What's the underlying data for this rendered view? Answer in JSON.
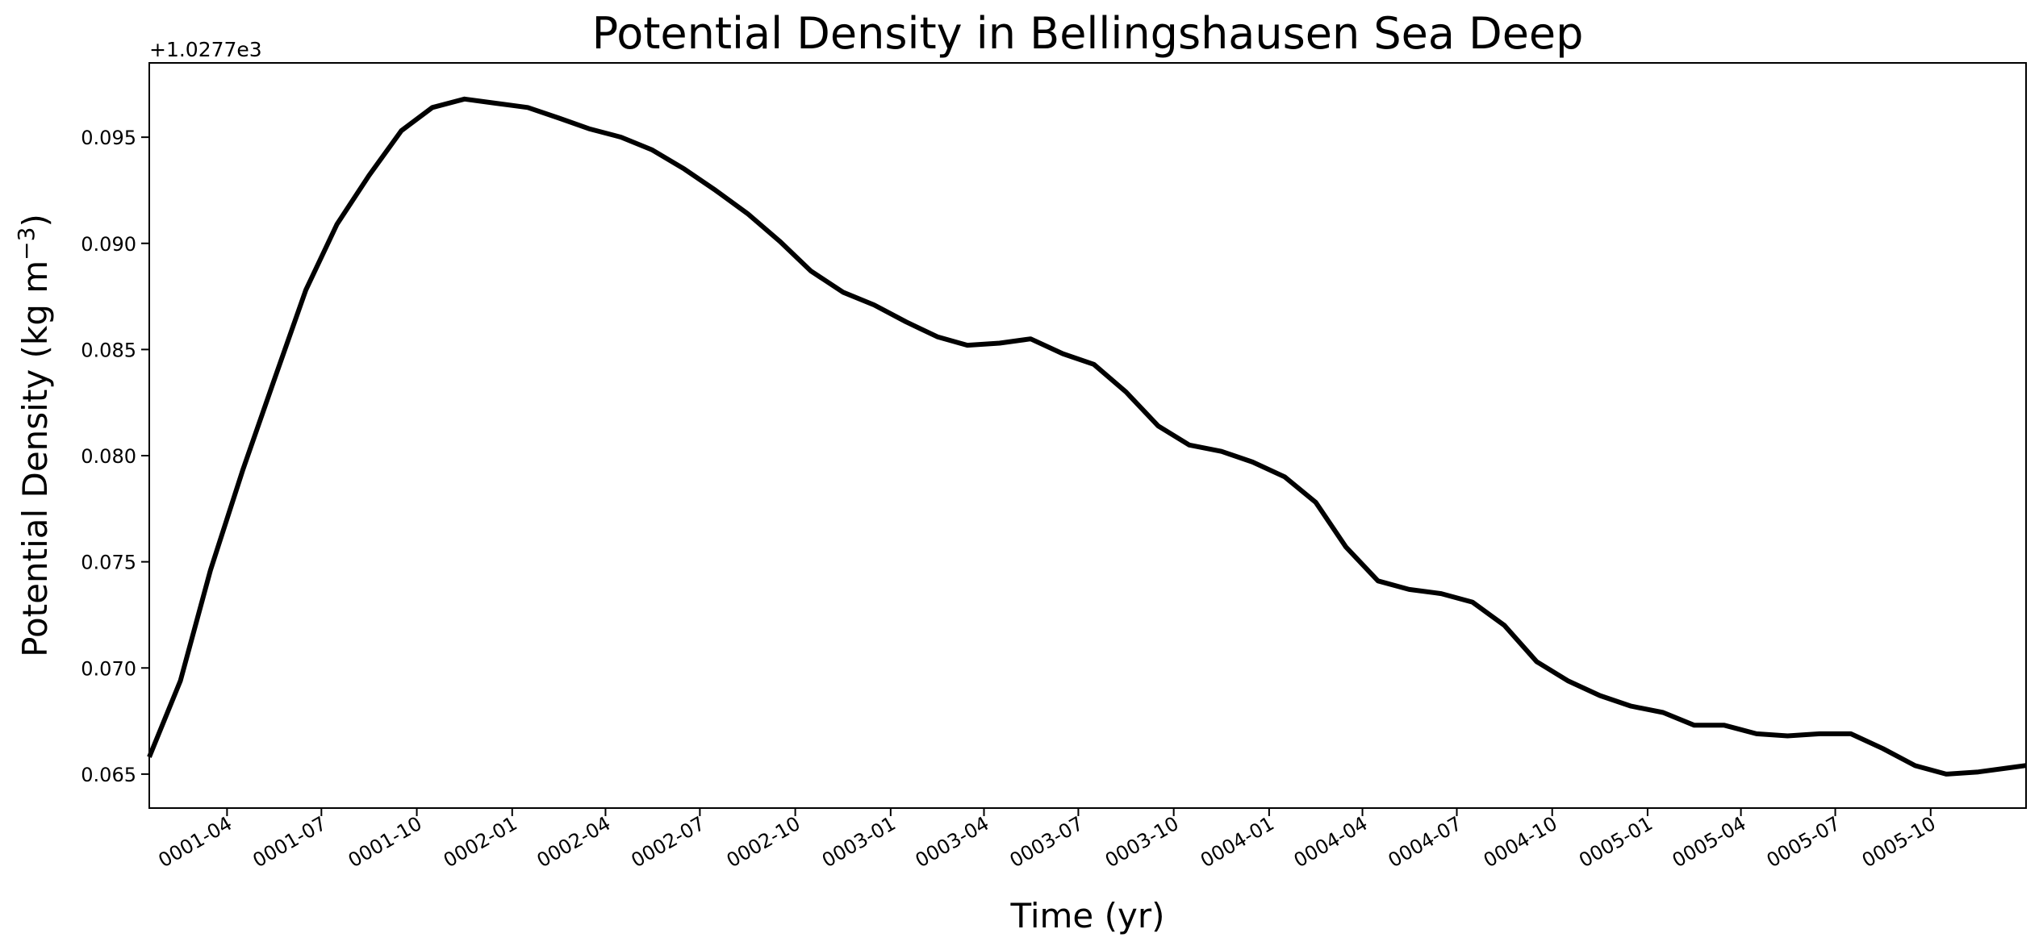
{
  "chart_data": {
    "type": "line",
    "title": "Potential Density in Bellingshausen Sea Deep",
    "xlabel": "Time (yr)",
    "ylabel": "Potential Density (kg m",
    "ylabel_exponent": "−3",
    "ylabel_suffix": ")",
    "offset_text": "+1.0277e3",
    "ylim": [
      0.0634,
      0.0985
    ],
    "xlim": [
      "0001-01-16",
      "0006-01-01"
    ],
    "x_ticks": [
      "0001-04",
      "0001-07",
      "0001-10",
      "0002-01",
      "0002-04",
      "0002-07",
      "0002-10",
      "0003-01",
      "0003-04",
      "0003-07",
      "0003-10",
      "0004-01",
      "0004-04",
      "0004-07",
      "0004-10",
      "0005-01",
      "0005-04",
      "0005-07",
      "0005-10"
    ],
    "y_ticks": [
      "0.065",
      "0.070",
      "0.075",
      "0.080",
      "0.085",
      "0.090",
      "0.095"
    ],
    "grid": false,
    "line_color": "#000000",
    "series": [
      {
        "x": [
          "0001-01-16",
          "0001-02-15",
          "0001-03-16",
          "0001-04-16",
          "0001-05-16",
          "0001-06-16",
          "0001-07-16",
          "0001-08-16",
          "0001-09-16",
          "0001-10-16",
          "0001-11-16",
          "0001-12-16",
          "0002-01-16",
          "0002-02-15",
          "0002-03-16",
          "0002-04-16",
          "0002-05-16",
          "0002-06-16",
          "0002-07-16",
          "0002-08-16",
          "0002-09-16",
          "0002-10-16",
          "0002-11-16",
          "0002-12-16",
          "0003-01-16",
          "0003-02-15",
          "0003-03-16",
          "0003-04-16",
          "0003-05-16",
          "0003-06-16",
          "0003-07-16",
          "0003-08-16",
          "0003-09-16",
          "0003-10-16",
          "0003-11-16",
          "0003-12-16",
          "0004-01-16",
          "0004-02-15",
          "0004-03-16",
          "0004-04-16",
          "0004-05-16",
          "0004-06-16",
          "0004-07-16",
          "0004-08-16",
          "0004-09-16",
          "0004-10-16",
          "0004-11-16",
          "0004-12-16",
          "0005-01-16",
          "0005-02-15",
          "0005-03-16",
          "0005-04-16",
          "0005-05-16",
          "0005-06-16",
          "0005-07-16",
          "0005-08-16",
          "0005-09-16",
          "0005-10-16",
          "0005-11-16",
          "0005-12-16"
        ],
        "values": [
          0.0658,
          0.0694,
          0.0746,
          0.0793,
          0.0835,
          0.0878,
          0.0909,
          0.0932,
          0.0953,
          0.0964,
          0.0968,
          0.0966,
          0.0964,
          0.0959,
          0.0954,
          0.095,
          0.0944,
          0.0935,
          0.0925,
          0.0914,
          0.0901,
          0.0887,
          0.0877,
          0.0871,
          0.0863,
          0.0856,
          0.0852,
          0.0853,
          0.0855,
          0.0848,
          0.0843,
          0.083,
          0.0814,
          0.0805,
          0.0802,
          0.0797,
          0.079,
          0.0778,
          0.0757,
          0.0741,
          0.0737,
          0.0735,
          0.0731,
          0.072,
          0.0703,
          0.0694,
          0.0687,
          0.0682,
          0.0679,
          0.0673,
          0.0673,
          0.0669,
          0.0668,
          0.0669,
          0.0669,
          0.0662,
          0.0654,
          0.065,
          0.0651,
          0.0653
        ]
      }
    ]
  }
}
